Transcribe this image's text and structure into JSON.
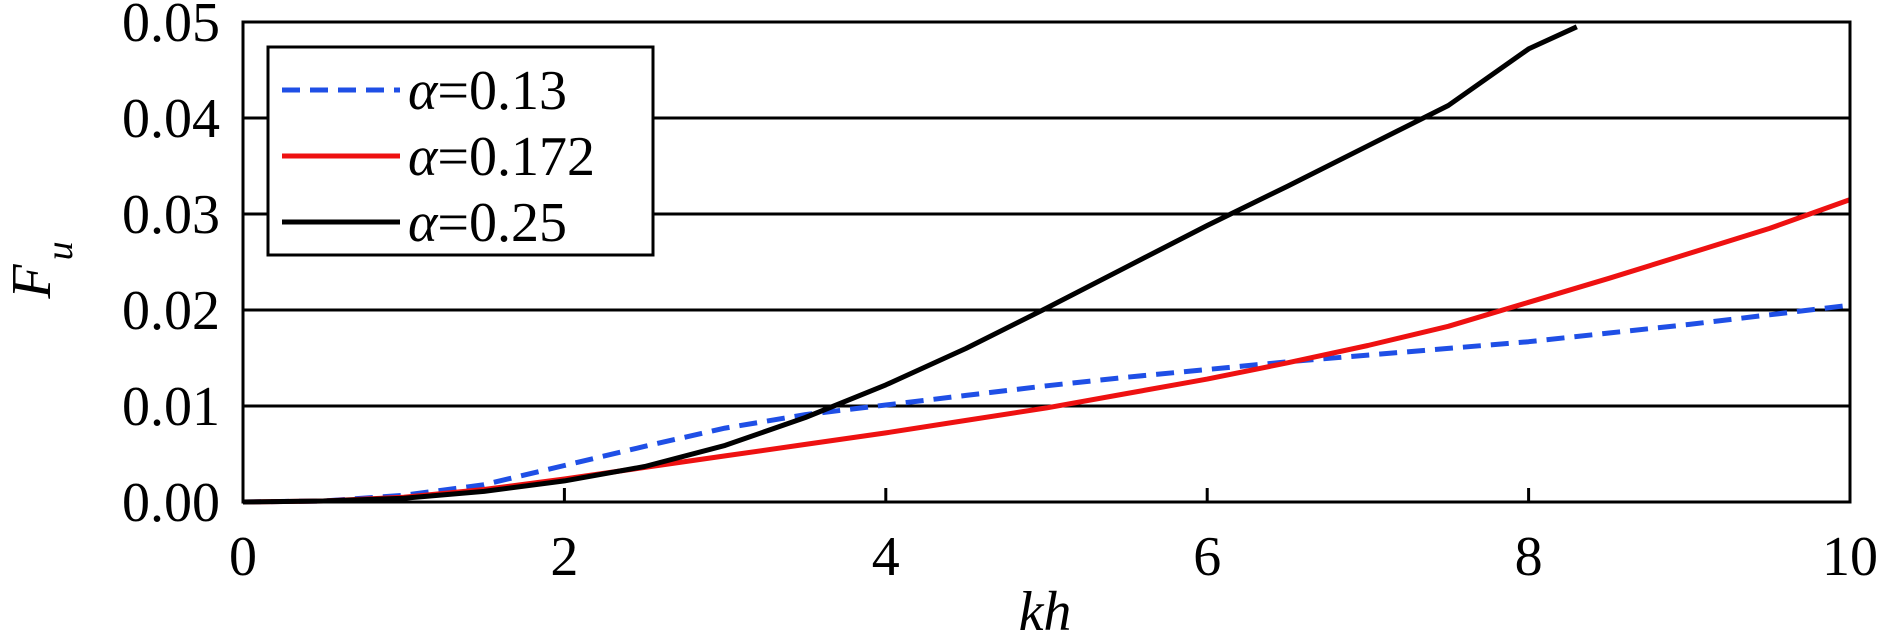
{
  "chart_data": {
    "type": "line",
    "xlabel": "kh",
    "ylabel": "F",
    "ylabel_sub": "u",
    "xlim": [
      0,
      10
    ],
    "ylim": [
      0,
      0.05
    ],
    "x_ticks": [
      "0",
      "2",
      "4",
      "6",
      "8",
      "10"
    ],
    "y_ticks": [
      "0.00",
      "0.01",
      "0.02",
      "0.03",
      "0.04",
      "0.05"
    ],
    "grid": "horizontal",
    "legend_position": "top-left",
    "series": [
      {
        "name": "α=0.13",
        "legend_symbol": "α",
        "legend_value": "=0.13",
        "color": "#1f4fe6",
        "style": "dashed",
        "x": [
          0,
          0.5,
          1,
          1.5,
          2,
          2.5,
          3,
          3.5,
          4,
          4.5,
          5,
          5.5,
          6,
          6.5,
          7,
          7.5,
          8,
          8.5,
          9,
          9.5,
          10
        ],
        "y": [
          0,
          0.0001,
          0.0007,
          0.0018,
          0.0038,
          0.0058,
          0.0077,
          0.0091,
          0.0101,
          0.0111,
          0.0121,
          0.013,
          0.0138,
          0.0146,
          0.0153,
          0.016,
          0.0167,
          0.0176,
          0.0185,
          0.0195,
          0.0205
        ]
      },
      {
        "name": "α=0.172",
        "legend_symbol": "α",
        "legend_value": "=0.172",
        "color": "#ee1111",
        "style": "solid",
        "x": [
          0,
          0.5,
          1,
          1.5,
          2,
          2.5,
          3,
          3.5,
          4,
          4.5,
          5,
          5.5,
          6,
          6.5,
          7,
          7.5,
          8,
          8.5,
          9,
          9.5,
          10
        ],
        "y": [
          0,
          0.0001,
          0.0005,
          0.0013,
          0.0024,
          0.0036,
          0.0048,
          0.006,
          0.0072,
          0.0085,
          0.0098,
          0.0113,
          0.0128,
          0.0145,
          0.0163,
          0.0183,
          0.0208,
          0.0233,
          0.0259,
          0.0285,
          0.0315
        ]
      },
      {
        "name": "α=0.25",
        "legend_symbol": "α",
        "legend_value": "=0.25",
        "color": "#000000",
        "style": "solid",
        "x": [
          0,
          0.5,
          1,
          1.5,
          2,
          2.5,
          3,
          3.5,
          4,
          4.5,
          5,
          5.5,
          6,
          6.5,
          7,
          7.5,
          8,
          8.3
        ],
        "y": [
          0,
          0.0001,
          0.0004,
          0.0011,
          0.0022,
          0.0037,
          0.0059,
          0.0088,
          0.0122,
          0.016,
          0.0202,
          0.0245,
          0.0288,
          0.0329,
          0.0371,
          0.0413,
          0.0472,
          0.0495
        ]
      }
    ]
  }
}
